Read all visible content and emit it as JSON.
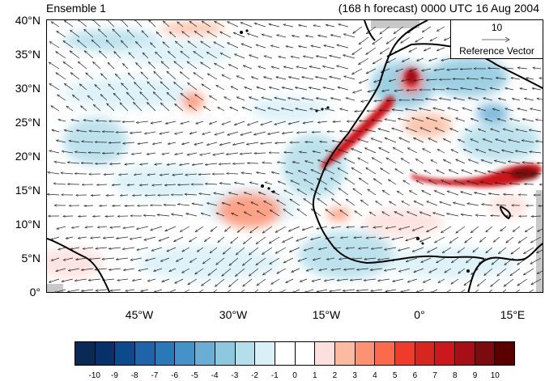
{
  "header": {
    "left_title": "Ensemble 1",
    "right_title": "(168 h forecast) 0000 UTC 16 Aug 2004"
  },
  "map": {
    "lat_labels": [
      "40°N",
      "35°N",
      "30°N",
      "25°N",
      "20°N",
      "15°N",
      "10°N",
      "5°N",
      "0°"
    ],
    "lon_labels": [
      "45°W",
      "30°W",
      "15°W",
      "0°",
      "15°E"
    ],
    "lat_range": [
      0,
      40
    ],
    "lon_range": [
      -60,
      20
    ],
    "land_outline_color": "#000000",
    "missing_color": "#c8c8c8"
  },
  "reference_vector": {
    "value": "10",
    "label": "Reference Vector"
  },
  "colorbar": {
    "labels": [
      "-10",
      "-9",
      "-8",
      "-7",
      "-6",
      "-5",
      "-4",
      "-3",
      "-2",
      "-1",
      "0",
      "1",
      "2",
      "3",
      "4",
      "5",
      "6",
      "7",
      "8",
      "9",
      "10"
    ],
    "colors": [
      "#0a2a55",
      "#08306b",
      "#0d4a8c",
      "#1f64a8",
      "#2b78b9",
      "#4592c8",
      "#6aaed6",
      "#8ec8df",
      "#b3deea",
      "#d9f0f8",
      "#ffffff",
      "#ffffff",
      "#fde0dd",
      "#fcbba1",
      "#fc9272",
      "#fb6a4a",
      "#ef3b2c",
      "#d7251f",
      "#cb181d",
      "#a50f15",
      "#7a0c10",
      "#5a0000"
    ]
  }
}
